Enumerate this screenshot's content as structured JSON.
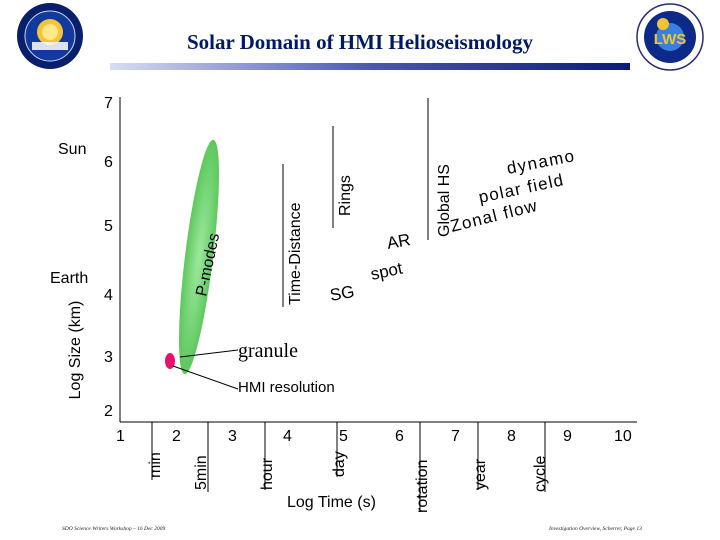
{
  "header": {
    "title": "Solar Domain of HMI Helioseismology",
    "right_logo_text": "LWS"
  },
  "axes": {
    "y_title": "Log Size (km)",
    "x_title": "Log Time (s)",
    "y_ticks": [
      "2",
      "3",
      "4",
      "5",
      "6",
      "7"
    ],
    "x_ticks": [
      "1",
      "2",
      "3",
      "4",
      "5",
      "6",
      "7",
      "8",
      "9",
      "10"
    ],
    "y_refs": {
      "sun": "Sun",
      "earth": "Earth"
    }
  },
  "time_markers": [
    "min",
    "5min",
    "hour",
    "day",
    "rotation",
    "year",
    "cycle"
  ],
  "regions": {
    "p_modes": "P-modes",
    "granule": "granule",
    "hmi_resolution": "HMI resolution",
    "time_distance": "Time-Distance",
    "rings": "Rings",
    "global_hs": "Global HS",
    "sg": "SG",
    "ar": "AR",
    "spot": "spot",
    "dynamo": "dynamo",
    "polar_field": "polar field",
    "zonal_flow": "Zonal flow"
  },
  "colors": {
    "title": "#001a66",
    "p_modes_fill": "#6fd46f",
    "hmi_marker": "#e8106a"
  },
  "footer": {
    "left": "SDO Science Writers Workshop – 16 Dec 2009",
    "right": "Investigation Overview, Scherrer, Page 13"
  }
}
